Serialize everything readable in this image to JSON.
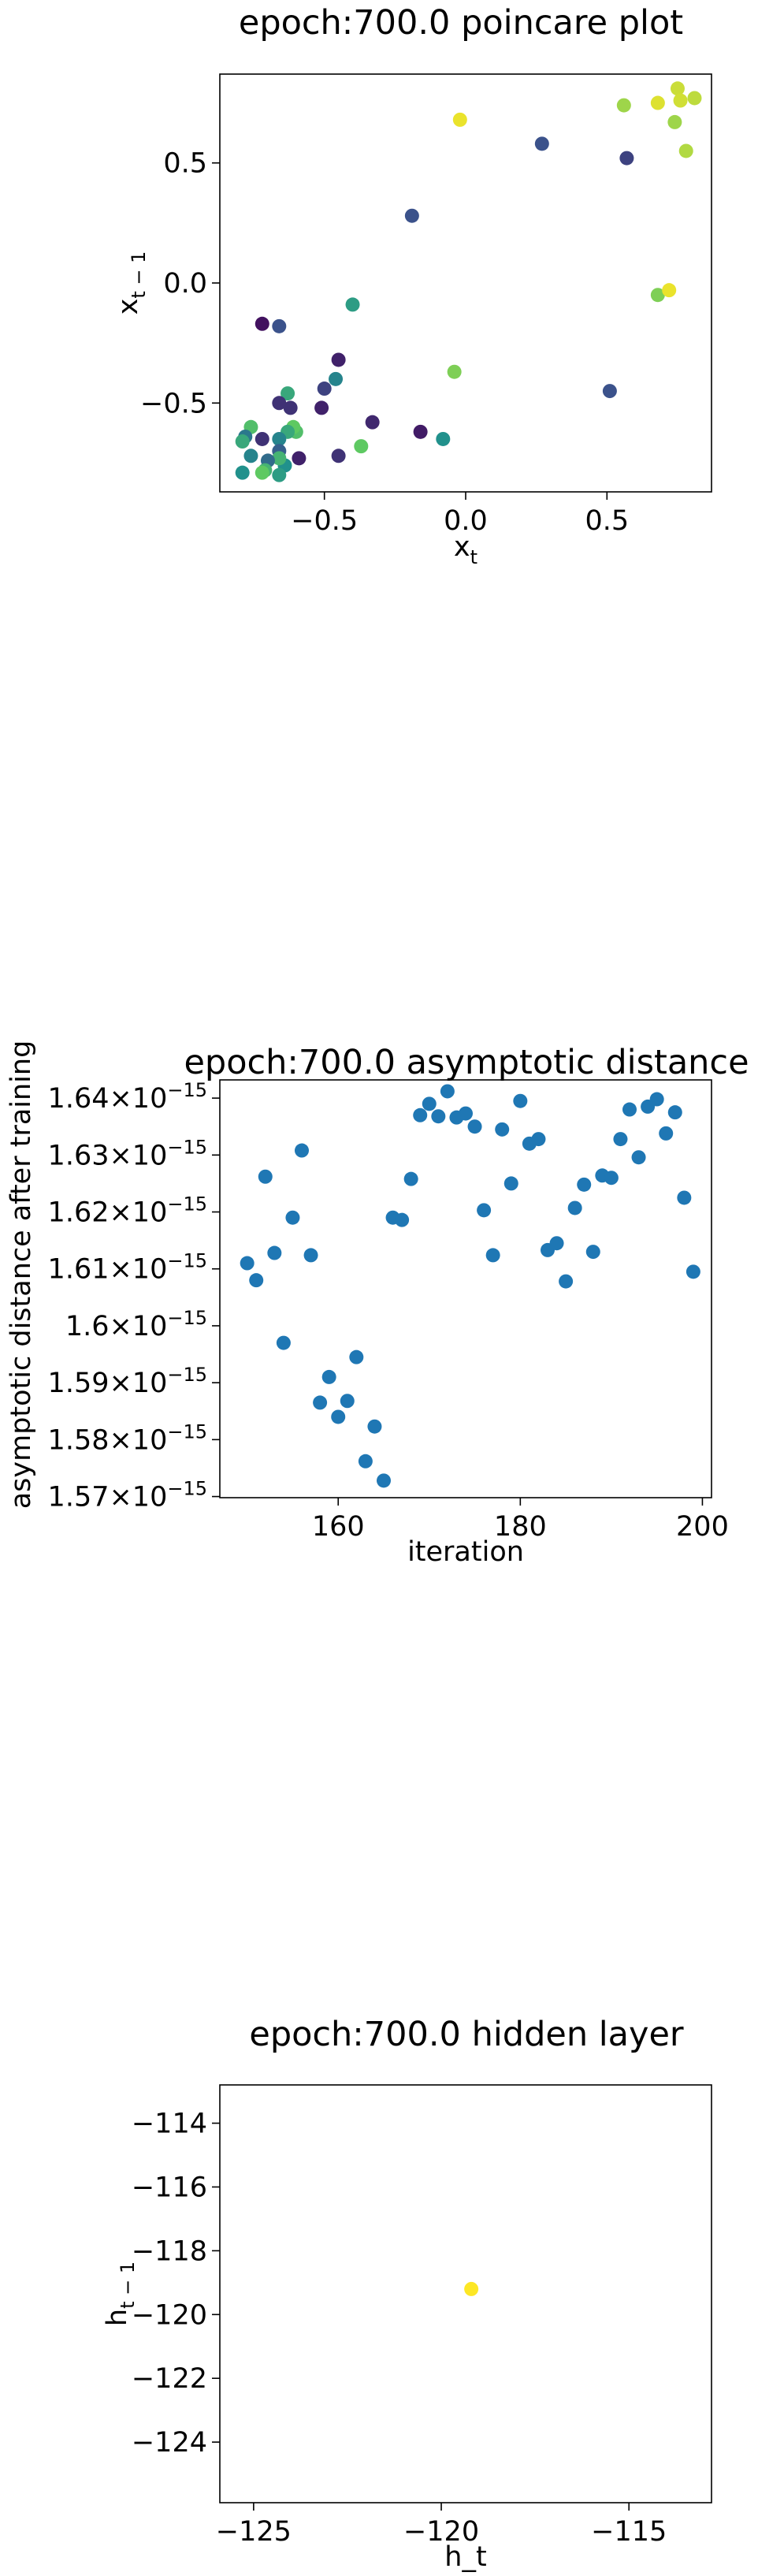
{
  "chart_data": [
    {
      "id": "poincare",
      "type": "scatter",
      "title": "epoch:700.0 poincare plot",
      "xlabel": "x_t",
      "ylabel": "x_{t-1}",
      "xlim": [
        -0.87,
        0.87
      ],
      "ylim": [
        -0.87,
        0.87
      ],
      "xticks": [
        -0.5,
        0.0,
        0.5
      ],
      "xtick_labels": [
        "−0.5",
        "0.0",
        "0.5"
      ],
      "yticks": [
        -0.5,
        0.0,
        0.5
      ],
      "ytick_labels": [
        "−0.5",
        "0.0",
        "0.5"
      ],
      "colormap": "viridis",
      "points": [
        {
          "x": -0.72,
          "y": -0.17,
          "c": 0.05
        },
        {
          "x": -0.66,
          "y": -0.18,
          "c": 0.25
        },
        {
          "x": -0.4,
          "y": -0.09,
          "c": 0.55
        },
        {
          "x": -0.19,
          "y": 0.28,
          "c": 0.25
        },
        {
          "x": 0.27,
          "y": 0.58,
          "c": 0.25
        },
        {
          "x": -0.02,
          "y": 0.68,
          "c": 0.97
        },
        {
          "x": 0.56,
          "y": 0.74,
          "c": 0.85
        },
        {
          "x": 0.68,
          "y": 0.75,
          "c": 0.95
        },
        {
          "x": 0.75,
          "y": 0.81,
          "c": 0.92
        },
        {
          "x": 0.76,
          "y": 0.76,
          "c": 0.93
        },
        {
          "x": 0.81,
          "y": 0.77,
          "c": 0.9
        },
        {
          "x": 0.74,
          "y": 0.67,
          "c": 0.85
        },
        {
          "x": 0.78,
          "y": 0.55,
          "c": 0.88
        },
        {
          "x": 0.57,
          "y": 0.52,
          "c": 0.2
        },
        {
          "x": 0.68,
          "y": -0.05,
          "c": 0.8
        },
        {
          "x": 0.72,
          "y": -0.03,
          "c": 0.97
        },
        {
          "x": 0.51,
          "y": -0.45,
          "c": 0.25
        },
        {
          "x": -0.04,
          "y": -0.37,
          "c": 0.8
        },
        {
          "x": -0.08,
          "y": -0.65,
          "c": 0.5
        },
        {
          "x": -0.16,
          "y": -0.62,
          "c": 0.08
        },
        {
          "x": -0.33,
          "y": -0.58,
          "c": 0.12
        },
        {
          "x": -0.37,
          "y": -0.68,
          "c": 0.75
        },
        {
          "x": -0.45,
          "y": -0.72,
          "c": 0.15
        },
        {
          "x": -0.45,
          "y": -0.32,
          "c": 0.1
        },
        {
          "x": -0.46,
          "y": -0.4,
          "c": 0.45
        },
        {
          "x": -0.5,
          "y": -0.44,
          "c": 0.2
        },
        {
          "x": -0.51,
          "y": -0.52,
          "c": 0.1
        },
        {
          "x": -0.59,
          "y": -0.73,
          "c": 0.1
        },
        {
          "x": -0.6,
          "y": -0.62,
          "c": 0.7
        },
        {
          "x": -0.61,
          "y": -0.6,
          "c": 0.75
        },
        {
          "x": -0.62,
          "y": -0.52,
          "c": 0.15
        },
        {
          "x": -0.63,
          "y": -0.46,
          "c": 0.6
        },
        {
          "x": -0.63,
          "y": -0.62,
          "c": 0.6
        },
        {
          "x": -0.64,
          "y": -0.76,
          "c": 0.5
        },
        {
          "x": -0.66,
          "y": -0.5,
          "c": 0.15
        },
        {
          "x": -0.66,
          "y": -0.65,
          "c": 0.45
        },
        {
          "x": -0.66,
          "y": -0.7,
          "c": 0.3
        },
        {
          "x": -0.66,
          "y": -0.73,
          "c": 0.65
        },
        {
          "x": -0.66,
          "y": -0.8,
          "c": 0.55
        },
        {
          "x": -0.7,
          "y": -0.74,
          "c": 0.35
        },
        {
          "x": -0.71,
          "y": -0.78,
          "c": 0.65
        },
        {
          "x": -0.72,
          "y": -0.65,
          "c": 0.15
        },
        {
          "x": -0.72,
          "y": -0.79,
          "c": 0.75
        },
        {
          "x": -0.76,
          "y": -0.6,
          "c": 0.7
        },
        {
          "x": -0.76,
          "y": -0.72,
          "c": 0.45
        },
        {
          "x": -0.78,
          "y": -0.64,
          "c": 0.4
        },
        {
          "x": -0.79,
          "y": -0.66,
          "c": 0.6
        },
        {
          "x": -0.79,
          "y": -0.79,
          "c": 0.5
        }
      ]
    },
    {
      "id": "asymptotic",
      "type": "scatter",
      "title": "epoch:700.0 asymptotic distance",
      "xlabel": "iteration",
      "ylabel": "asymptotic distance after training",
      "xlim": [
        147,
        201
      ],
      "ylim": [
        1.5698,
        1.6432
      ],
      "xticks": [
        160,
        180,
        200
      ],
      "xtick_labels": [
        "160",
        "180",
        "200"
      ],
      "yticks": [
        1.57,
        1.58,
        1.59,
        1.6,
        1.61,
        1.62,
        1.63,
        1.64
      ],
      "ytick_mantissas": [
        "1.57",
        "1.58",
        "1.59",
        "1.6",
        "1.61",
        "1.62",
        "1.63",
        "1.64"
      ],
      "ytick_suffix": "×10",
      "ytick_exponent": "−15",
      "y_scale_note": "values ×10^-15",
      "color": "#1f77b4",
      "points": [
        {
          "x": 150,
          "y": 1.611
        },
        {
          "x": 151,
          "y": 1.608
        },
        {
          "x": 152,
          "y": 1.6262
        },
        {
          "x": 153,
          "y": 1.6128
        },
        {
          "x": 154,
          "y": 1.597
        },
        {
          "x": 155,
          "y": 1.619
        },
        {
          "x": 156,
          "y": 1.6308
        },
        {
          "x": 157,
          "y": 1.6124
        },
        {
          "x": 158,
          "y": 1.5865
        },
        {
          "x": 159,
          "y": 1.591
        },
        {
          "x": 160,
          "y": 1.584
        },
        {
          "x": 161,
          "y": 1.5868
        },
        {
          "x": 162,
          "y": 1.5945
        },
        {
          "x": 163,
          "y": 1.5762
        },
        {
          "x": 164,
          "y": 1.5823
        },
        {
          "x": 165,
          "y": 1.5728
        },
        {
          "x": 166,
          "y": 1.619
        },
        {
          "x": 167,
          "y": 1.6186
        },
        {
          "x": 168,
          "y": 1.6258
        },
        {
          "x": 169,
          "y": 1.637
        },
        {
          "x": 170,
          "y": 1.639
        },
        {
          "x": 171,
          "y": 1.6368
        },
        {
          "x": 172,
          "y": 1.6412
        },
        {
          "x": 173,
          "y": 1.6366
        },
        {
          "x": 174,
          "y": 1.6373
        },
        {
          "x": 175,
          "y": 1.635
        },
        {
          "x": 176,
          "y": 1.6203
        },
        {
          "x": 177,
          "y": 1.6124
        },
        {
          "x": 178,
          "y": 1.6345
        },
        {
          "x": 179,
          "y": 1.625
        },
        {
          "x": 180,
          "y": 1.6395
        },
        {
          "x": 181,
          "y": 1.632
        },
        {
          "x": 182,
          "y": 1.6328
        },
        {
          "x": 183,
          "y": 1.6133
        },
        {
          "x": 184,
          "y": 1.6145
        },
        {
          "x": 185,
          "y": 1.6078
        },
        {
          "x": 186,
          "y": 1.6207
        },
        {
          "x": 187,
          "y": 1.6248
        },
        {
          "x": 188,
          "y": 1.613
        },
        {
          "x": 189,
          "y": 1.6264
        },
        {
          "x": 190,
          "y": 1.626
        },
        {
          "x": 191,
          "y": 1.6328
        },
        {
          "x": 192,
          "y": 1.638
        },
        {
          "x": 193,
          "y": 1.6296
        },
        {
          "x": 194,
          "y": 1.6385
        },
        {
          "x": 195,
          "y": 1.6398
        },
        {
          "x": 196,
          "y": 1.6338
        },
        {
          "x": 197,
          "y": 1.6375
        },
        {
          "x": 198,
          "y": 1.6225
        },
        {
          "x": 199,
          "y": 1.6095
        }
      ]
    },
    {
      "id": "hidden",
      "type": "scatter",
      "title": "epoch:700.0 hidden layer",
      "xlabel": "h_t",
      "ylabel": "h_{t-1}",
      "xlim": [
        -125.9,
        -112.8
      ],
      "ylim": [
        -125.9,
        -112.8
      ],
      "xticks": [
        -125,
        -120,
        -115
      ],
      "xtick_labels": [
        "−125",
        "−120",
        "−115"
      ],
      "yticks": [
        -114,
        -116,
        -118,
        -120,
        -122,
        -124
      ],
      "ytick_labels": [
        "−114",
        "−116",
        "−118",
        "−120",
        "−122",
        "−124"
      ],
      "color": "#fde725",
      "points": [
        {
          "x": -119.2,
          "y": -119.2
        }
      ]
    }
  ]
}
